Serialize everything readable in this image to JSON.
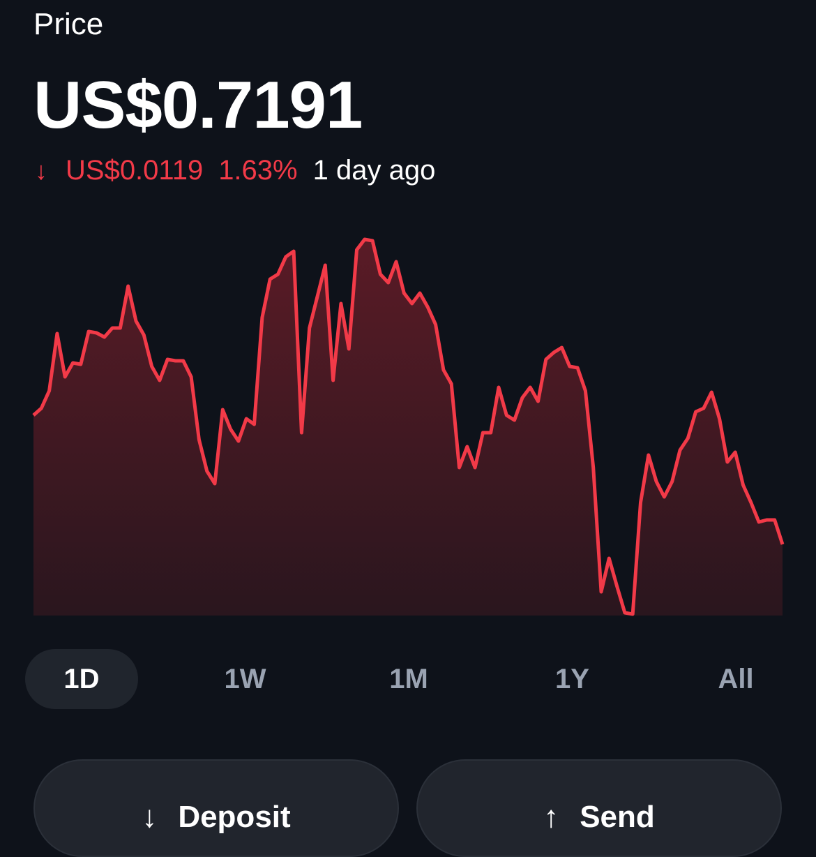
{
  "header": {
    "label": "Price",
    "price": "US$0.7191"
  },
  "change": {
    "direction_icon": "arrow-down-icon",
    "amount": "US$0.0119",
    "percent": "1.63%",
    "period": "1 day ago",
    "color": "#f23a48"
  },
  "chart_data": {
    "type": "area",
    "line_color": "#f23a48",
    "grid": false,
    "note_units": "relative",
    "values": [
      287,
      297,
      322,
      404,
      342,
      362,
      360,
      407,
      405,
      399,
      412,
      412,
      472,
      422,
      402,
      357,
      337,
      367,
      365,
      365,
      342,
      252,
      207,
      189,
      295,
      267,
      250,
      282,
      274,
      427,
      482,
      489,
      514,
      522,
      262,
      412,
      457,
      502,
      337,
      447,
      382,
      524,
      539,
      537,
      489,
      477,
      507,
      462,
      447,
      462,
      442,
      417,
      352,
      332,
      212,
      242,
      212,
      262,
      262,
      327,
      287,
      280,
      312,
      327,
      307,
      367,
      377,
      384,
      357,
      355,
      322,
      212,
      34,
      82,
      42,
      4,
      2,
      162,
      230,
      192,
      170,
      192,
      237,
      254,
      292,
      297,
      320,
      282,
      220,
      234,
      187,
      162,
      134,
      137,
      137,
      102
    ]
  },
  "timeframes": [
    {
      "label": "1D",
      "selected": true
    },
    {
      "label": "1W",
      "selected": false
    },
    {
      "label": "1M",
      "selected": false
    },
    {
      "label": "1Y",
      "selected": false
    },
    {
      "label": "All",
      "selected": false
    }
  ],
  "actions": {
    "deposit": {
      "label": "Deposit",
      "icon": "arrow-down-icon"
    },
    "send": {
      "label": "Send",
      "icon": "arrow-up-icon"
    }
  }
}
